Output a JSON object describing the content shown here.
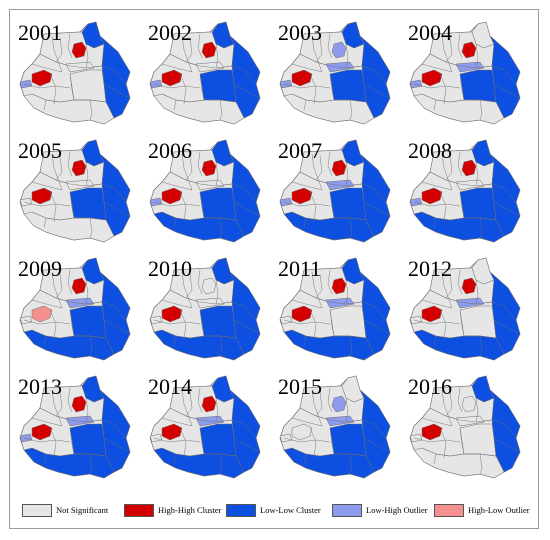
{
  "colors": {
    "not_significant": "#e6e6e6",
    "high_high": "#d40000",
    "low_low": "#0d4fe0",
    "low_high": "#8c9bec",
    "high_low": "#f4908f",
    "border": "#6e6e6e"
  },
  "legend": [
    {
      "key": "not_significant",
      "label": "Not Significant"
    },
    {
      "key": "high_high",
      "label": "High-High Cluster"
    },
    {
      "key": "low_low",
      "label": "Low-Low Cluster"
    },
    {
      "key": "low_high",
      "label": "Low-High Outlier"
    },
    {
      "key": "high_low",
      "label": "High-Low Outlier"
    }
  ],
  "panels": [
    {
      "year": "2001",
      "regions": {
        "north": "low_low",
        "east": "low_low",
        "south": "not_significant",
        "centerNorth": "not_significant",
        "centerSouth": "not_significant",
        "hotspot": "high_high",
        "westHotspot": "high_high",
        "band": "not_significant",
        "westTip": "low_high"
      }
    },
    {
      "year": "2002",
      "regions": {
        "north": "low_low",
        "east": "low_low",
        "south": "not_significant",
        "centerNorth": "not_significant",
        "centerSouth": "low_low",
        "hotspot": "high_high",
        "westHotspot": "high_high",
        "band": "not_significant",
        "westTip": "low_high"
      }
    },
    {
      "year": "2003",
      "regions": {
        "north": "low_low",
        "east": "low_low",
        "south": "not_significant",
        "centerNorth": "not_significant",
        "centerSouth": "low_low",
        "hotspot": "low_high",
        "westHotspot": "high_high",
        "band": "low_high",
        "westTip": "low_high"
      }
    },
    {
      "year": "2004",
      "regions": {
        "north": "not_significant",
        "east": "low_low",
        "south": "not_significant",
        "centerNorth": "not_significant",
        "centerSouth": "low_low",
        "hotspot": "high_high",
        "westHotspot": "high_high",
        "band": "low_high",
        "westTip": "low_high"
      }
    },
    {
      "year": "2005",
      "regions": {
        "north": "low_low",
        "east": "low_low",
        "south": "not_significant",
        "centerNorth": "not_significant",
        "centerSouth": "low_low",
        "hotspot": "high_high",
        "westHotspot": "high_high",
        "band": "not_significant",
        "westTip": "not_significant"
      }
    },
    {
      "year": "2006",
      "regions": {
        "north": "low_low",
        "east": "low_low",
        "south": "low_low",
        "centerNorth": "not_significant",
        "centerSouth": "low_low",
        "hotspot": "high_high",
        "westHotspot": "high_high",
        "band": "not_significant",
        "westTip": "low_high"
      }
    },
    {
      "year": "2007",
      "regions": {
        "north": "low_low",
        "east": "low_low",
        "south": "low_low",
        "centerNorth": "not_significant",
        "centerSouth": "low_low",
        "hotspot": "high_high",
        "westHotspot": "high_high",
        "band": "low_high",
        "westTip": "low_high"
      }
    },
    {
      "year": "2008",
      "regions": {
        "north": "low_low",
        "east": "low_low",
        "south": "low_low",
        "centerNorth": "not_significant",
        "centerSouth": "low_low",
        "hotspot": "high_high",
        "westHotspot": "high_high",
        "band": "not_significant",
        "westTip": "low_high"
      }
    },
    {
      "year": "2009",
      "regions": {
        "north": "low_low",
        "east": "low_low",
        "south": "low_low",
        "centerNorth": "not_significant",
        "centerSouth": "low_low",
        "hotspot": "high_high",
        "westHotspot": "high_low",
        "band": "low_high",
        "westTip": "not_significant"
      }
    },
    {
      "year": "2010",
      "regions": {
        "north": "low_low",
        "east": "low_low",
        "south": "low_low",
        "centerNorth": "not_significant",
        "centerSouth": "low_low",
        "hotspot": "not_significant",
        "westHotspot": "high_high",
        "band": "not_significant",
        "westTip": "not_significant"
      }
    },
    {
      "year": "2011",
      "regions": {
        "north": "low_low",
        "east": "low_low",
        "south": "low_low",
        "centerNorth": "not_significant",
        "centerSouth": "not_significant",
        "hotspot": "high_high",
        "westHotspot": "high_high",
        "band": "low_high",
        "westTip": "not_significant"
      }
    },
    {
      "year": "2012",
      "regions": {
        "north": "not_significant",
        "east": "low_low",
        "south": "low_low",
        "centerNorth": "not_significant",
        "centerSouth": "not_significant",
        "hotspot": "high_high",
        "westHotspot": "high_high",
        "band": "low_high",
        "westTip": "not_significant"
      }
    },
    {
      "year": "2013",
      "regions": {
        "north": "low_low",
        "east": "low_low",
        "south": "low_low",
        "centerNorth": "not_significant",
        "centerSouth": "low_low",
        "hotspot": "high_high",
        "westHotspot": "high_high",
        "band": "low_high",
        "westTip": "low_high"
      }
    },
    {
      "year": "2014",
      "regions": {
        "north": "low_low",
        "east": "low_low",
        "south": "low_low",
        "centerNorth": "not_significant",
        "centerSouth": "low_low",
        "hotspot": "high_high",
        "westHotspot": "high_high",
        "band": "low_high",
        "westTip": "not_significant"
      }
    },
    {
      "year": "2015",
      "regions": {
        "north": "not_significant",
        "east": "low_low",
        "south": "low_low",
        "centerNorth": "not_significant",
        "centerSouth": "low_low",
        "hotspot": "low_high",
        "westHotspot": "not_significant",
        "band": "low_high",
        "westTip": "not_significant"
      }
    },
    {
      "year": "2016",
      "regions": {
        "north": "low_low",
        "east": "low_low",
        "south": "not_significant",
        "centerNorth": "not_significant",
        "centerSouth": "not_significant",
        "hotspot": "not_significant",
        "westHotspot": "high_high",
        "band": "not_significant",
        "westTip": "not_significant"
      }
    }
  ]
}
